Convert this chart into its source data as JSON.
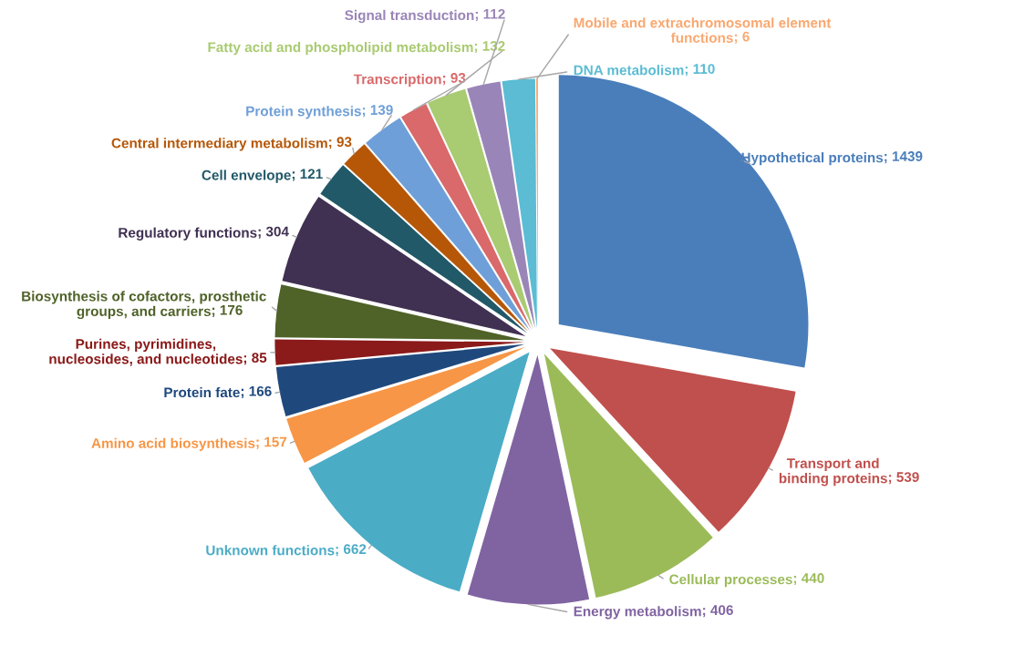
{
  "chart_data": {
    "type": "pie",
    "categories": [
      "Hypothetical proteins",
      "Transport and\nbinding proteins",
      "Cellular processes",
      "Energy metabolism",
      "Unknown functions",
      "Amino acid biosynthesis",
      "Protein fate",
      "Purines, pyrimidines,\nnucleosides, and nucleotides",
      "Biosynthesis of cofactors, prosthetic\ngroups, and carriers",
      "Regulatory functions",
      "Cell envelope",
      "Central intermediary metabolism",
      "Protein synthesis",
      "Transcription",
      "Fatty acid and phospholipid metabolism",
      "Signal transduction",
      "DNA metabolism",
      "Mobile and extrachromosomal element\nfunctions"
    ],
    "values": [
      1439,
      539,
      440,
      406,
      662,
      157,
      166,
      85,
      176,
      304,
      121,
      93,
      139,
      93,
      132,
      112,
      110,
      6
    ],
    "colors": [
      "#4a7ebb",
      "#c0504d",
      "#9bbb59",
      "#8064a2",
      "#4bacc6",
      "#f79646",
      "#1f497d",
      "#8b1a1a",
      "#4f6228",
      "#403152",
      "#215968",
      "#b65708",
      "#6f9fd8",
      "#d9696a",
      "#a9cb72",
      "#9a85b8",
      "#5bbcd4",
      "#f9a870"
    ],
    "value_labels": [
      "; 1439",
      "; 539",
      "; 440",
      "; 406",
      "; 662",
      "; 157",
      "; 166",
      "; 85",
      "; 176",
      "; 304",
      "; 121",
      "; 93",
      "; 139",
      "; 93",
      "; 132",
      "; 112",
      "; 110",
      "; 6"
    ],
    "legend": false
  }
}
